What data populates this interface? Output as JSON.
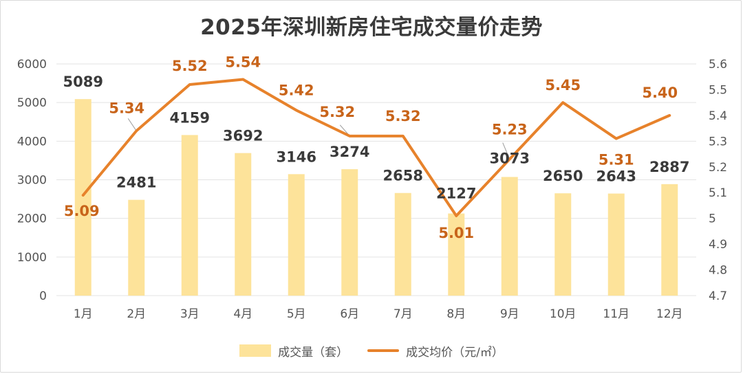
{
  "chart_data": {
    "type": "bar+line",
    "title": "2025年深圳新房住宅成交量价走势",
    "categories": [
      "1月",
      "2月",
      "3月",
      "4月",
      "5月",
      "6月",
      "7月",
      "8月",
      "9月",
      "10月",
      "11月",
      "12月"
    ],
    "series": [
      {
        "name": "成交量（套）",
        "type": "bar",
        "axis": "left",
        "values": [
          5089,
          2481,
          4159,
          3692,
          3146,
          3274,
          2658,
          2127,
          3073,
          2650,
          2643,
          2887
        ],
        "labels": [
          "5089",
          "2481",
          "4159",
          "3692",
          "3146",
          "3274",
          "2658",
          "2127",
          "3073",
          "2650",
          "2643",
          "2887"
        ]
      },
      {
        "name": "成交均价（元/㎡）",
        "type": "line",
        "axis": "right",
        "values": [
          5.09,
          5.34,
          5.52,
          5.54,
          5.42,
          5.32,
          5.32,
          5.01,
          5.23,
          5.45,
          5.31,
          5.4
        ],
        "labels": [
          "5.09",
          "5.34",
          "5.52",
          "5.54",
          "5.42",
          "5.32",
          "5.32",
          "5.01",
          "5.23",
          "5.45",
          "5.31",
          "5.40"
        ]
      }
    ],
    "y_left": {
      "min": 0,
      "max": 6000,
      "ticks": [
        "0",
        "1000",
        "2000",
        "3000",
        "4000",
        "5000",
        "6000"
      ]
    },
    "y_right": {
      "min": 4.7,
      "max": 5.6,
      "ticks": [
        "4.7",
        "4.8",
        "4.9",
        "5",
        "5.1",
        "5.2",
        "5.3",
        "5.4",
        "5.5",
        "5.6"
      ]
    },
    "grid": true,
    "legend": "bottom",
    "colors": {
      "bar": "#fde39a",
      "line": "#e7822b",
      "bar_label": "#3a3a3a",
      "line_label": "#c8641a",
      "grid": "#e3e3e3",
      "axis_text": "#555555"
    }
  }
}
